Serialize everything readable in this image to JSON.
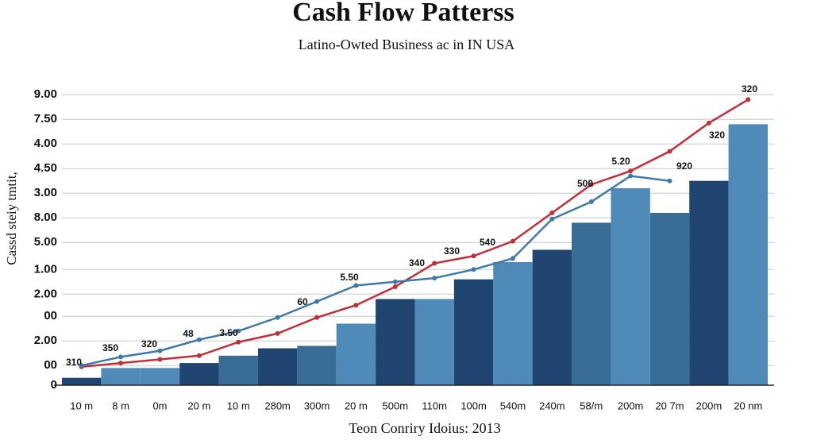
{
  "chart_data": {
    "type": "bar",
    "title": "Cash Flow Patterss",
    "subtitle": "Latino-Owted Business ac in IN USA",
    "x_label": "Teon Conriry Idoius: 2013",
    "y_label": "Cassd steiy tmtit,",
    "categories": [
      "10 m",
      "8 m",
      "0m",
      "20 m",
      "10 m",
      "280m",
      "300m",
      "20 m",
      "500m",
      "110m",
      "100m",
      "540m",
      "240m",
      "58/m",
      "200m",
      "20 7m",
      "200m",
      "20 nm"
    ],
    "values": [
      0.3,
      0.7,
      0.7,
      0.9,
      1.2,
      1.5,
      1.6,
      2.5,
      3.5,
      3.5,
      4.3,
      5.0,
      5.5,
      6.6,
      8.0,
      7.0,
      8.3,
      10.6
    ],
    "colors": [
      "#1f4570",
      "#4f8ab8",
      "#4f8ab8",
      "#1f4570",
      "#3a6d96",
      "#1f4570",
      "#3a6d96",
      "#4f8ab8",
      "#1f4570",
      "#4f8ab8",
      "#1f4570",
      "#4f8ab8",
      "#1f4570",
      "#3a6d96",
      "#4f8ab8",
      "#3a6d96",
      "#1f4570",
      "#4f8ab8"
    ],
    "lines": [
      {
        "color": "#c0303a",
        "values": [
          0.75,
          0.9,
          1.05,
          1.2,
          1.75,
          2.1,
          2.75,
          3.25,
          4.0,
          4.95,
          5.25,
          5.85,
          7.0,
          8.15,
          8.7,
          9.5,
          10.65,
          11.6
        ]
      },
      {
        "color": "#3f79a8",
        "values": [
          0.8,
          1.15,
          1.4,
          1.85,
          2.2,
          2.75,
          3.4,
          4.05,
          4.2,
          4.35,
          4.7,
          5.15,
          6.75,
          7.45,
          8.5,
          8.3,
          null,
          null
        ]
      }
    ],
    "annotations": [
      "310",
      "350",
      "320",
      "48",
      "3.50",
      "60",
      "5.50",
      "340",
      "330",
      "540",
      "500",
      "5.20",
      "920",
      "320",
      "320"
    ],
    "ylim": [
      0,
      12.5
    ],
    "yticks": [
      0,
      {
        "value": 0.8,
        "label": "00"
      },
      {
        "value": 1.8,
        "label": "2.00"
      },
      {
        "value": 2.8,
        "label": "00"
      },
      {
        "value": 3.7,
        "label": "2.00"
      },
      {
        "value": 4.7,
        "label": "1.00"
      },
      {
        "value": 5.8,
        "label": "5.00"
      },
      {
        "value": 6.8,
        "label": "8.00"
      },
      {
        "value": 7.8,
        "label": "3.00"
      },
      {
        "value": 8.8,
        "label": "4.50"
      },
      {
        "value": 9.8,
        "label": "4.00"
      },
      {
        "value": 10.8,
        "label": "7.50"
      },
      {
        "value": 11.8,
        "label": "9.00"
      }
    ],
    "grid": true
  }
}
